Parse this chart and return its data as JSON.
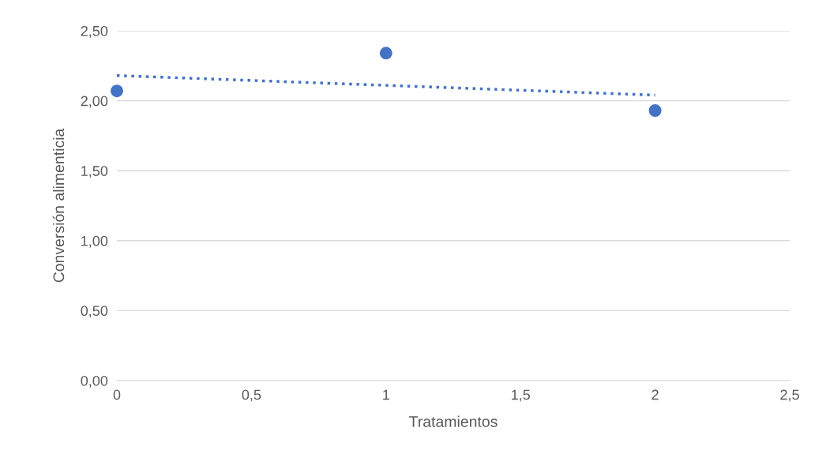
{
  "chart_data": {
    "type": "scatter",
    "xlabel": "Tratamientos",
    "ylabel": "Conversión alimenticia",
    "x": [
      0,
      1,
      2
    ],
    "series": [
      {
        "color": "#4472c4",
        "marker": "circle",
        "values": [
          2.07,
          2.34,
          1.93
        ]
      },
      {
        "type": "line",
        "color": "#4472c4",
        "line_style": "dotted",
        "marker": "none",
        "x": [
          0,
          2
        ],
        "values": [
          2.18,
          2.04
        ]
      }
    ],
    "xlim": [
      0,
      2.5
    ],
    "xticks": [
      0,
      {
        "value": 0.5,
        "label": "0,5"
      },
      1,
      {
        "value": 1.5,
        "label": "1,5"
      },
      2,
      {
        "value": 2.5,
        "label": "2,5"
      }
    ],
    "ylim": [
      0,
      2.5
    ],
    "yticks": [
      {
        "value": 0,
        "label": "0,00"
      },
      {
        "value": 0.5,
        "label": "0,50"
      },
      {
        "value": 1,
        "label": "1,00"
      },
      {
        "value": 1.5,
        "label": "1,50"
      },
      {
        "value": 2,
        "label": "2,00"
      },
      {
        "value": 2.5,
        "label": "2,50"
      }
    ],
    "grid": "y"
  }
}
